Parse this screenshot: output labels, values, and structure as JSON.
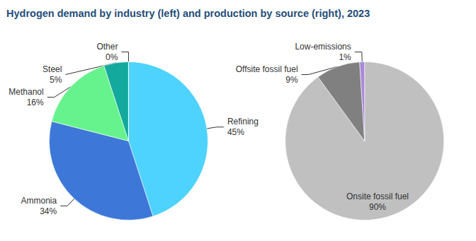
{
  "title": "Hydrogen demand by industry (left) and production by source (right), 2023",
  "chart_data": [
    {
      "type": "pie",
      "categories": [
        "Refining",
        "Ammonia",
        "Methanol",
        "Steel",
        "Other"
      ],
      "values": [
        45,
        34,
        16,
        5,
        0
      ],
      "value_labels": [
        "45%",
        "34%",
        "16%",
        "5%",
        "0%"
      ],
      "colors": [
        "#4dd3fd",
        "#3d78d8",
        "#66f38d",
        "#13a99d",
        "#e69a3a"
      ],
      "data_labels": true
    },
    {
      "type": "pie",
      "categories": [
        "Onsite fossil fuel",
        "Offsite fossil fuel",
        "Low-emissions"
      ],
      "values": [
        90,
        9,
        1
      ],
      "value_labels": [
        "90%",
        "9%",
        "1%"
      ],
      "colors": [
        "#c0c0c0",
        "#808080",
        "#a98bd8"
      ],
      "data_labels": true
    }
  ]
}
